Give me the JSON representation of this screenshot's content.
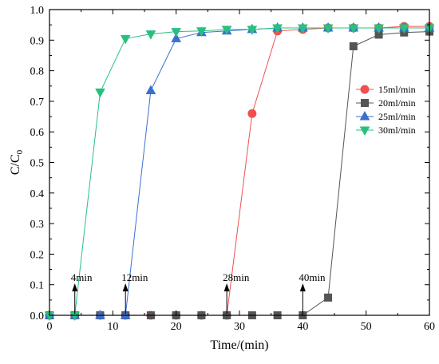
{
  "chart_data": {
    "type": "line",
    "title": "",
    "xlabel": "Time/(min)",
    "ylabel_main": "C/C",
    "ylabel_sub": "0",
    "xlim": [
      0,
      60
    ],
    "ylim": [
      0.0,
      1.0
    ],
    "x_ticks": [
      "0",
      "10",
      "20",
      "30",
      "40",
      "50",
      "60"
    ],
    "y_ticks": [
      "0.0",
      "0.1",
      "0.2",
      "0.3",
      "0.4",
      "0.5",
      "0.6",
      "0.7",
      "0.8",
      "0.9",
      "1.0"
    ],
    "grid": false,
    "legend_position": "right-center",
    "series": [
      {
        "name": "15ml/min",
        "color": "#f05050",
        "marker": "circle",
        "points": [
          [
            0,
            0
          ],
          [
            4,
            0
          ],
          [
            8,
            0
          ],
          [
            12,
            0
          ],
          [
            16,
            0
          ],
          [
            20,
            0
          ],
          [
            24,
            0
          ],
          [
            28,
            0
          ],
          [
            32,
            0.66
          ],
          [
            36,
            0.93
          ],
          [
            40,
            0.935
          ],
          [
            44,
            0.94
          ],
          [
            48,
            0.94
          ],
          [
            52,
            0.94
          ],
          [
            56,
            0.945
          ],
          [
            60,
            0.945
          ]
        ]
      },
      {
        "name": "20ml/min",
        "color": "#555555",
        "marker": "square",
        "points": [
          [
            0,
            0
          ],
          [
            4,
            0
          ],
          [
            8,
            0
          ],
          [
            12,
            0
          ],
          [
            16,
            0
          ],
          [
            20,
            0
          ],
          [
            24,
            0
          ],
          [
            28,
            0
          ],
          [
            32,
            0
          ],
          [
            36,
            0
          ],
          [
            40,
            0
          ],
          [
            44,
            0.058
          ],
          [
            48,
            0.88
          ],
          [
            52,
            0.918
          ],
          [
            56,
            0.925
          ],
          [
            60,
            0.928
          ]
        ]
      },
      {
        "name": "25ml/min",
        "color": "#3a6fd0",
        "marker": "triangle-up",
        "points": [
          [
            0,
            0
          ],
          [
            4,
            0
          ],
          [
            8,
            0
          ],
          [
            12,
            0
          ],
          [
            16,
            0.735
          ],
          [
            20,
            0.905
          ],
          [
            24,
            0.925
          ],
          [
            28,
            0.93
          ],
          [
            32,
            0.935
          ],
          [
            36,
            0.94
          ],
          [
            40,
            0.94
          ],
          [
            44,
            0.94
          ],
          [
            48,
            0.94
          ],
          [
            52,
            0.94
          ],
          [
            56,
            0.94
          ],
          [
            60,
            0.94
          ]
        ]
      },
      {
        "name": "30ml/min",
        "color": "#28c080",
        "marker": "triangle-down",
        "points": [
          [
            0,
            0
          ],
          [
            4,
            0
          ],
          [
            8,
            0.73
          ],
          [
            12,
            0.905
          ],
          [
            16,
            0.92
          ],
          [
            20,
            0.928
          ],
          [
            24,
            0.93
          ],
          [
            28,
            0.935
          ],
          [
            32,
            0.935
          ],
          [
            36,
            0.94
          ],
          [
            40,
            0.94
          ],
          [
            44,
            0.94
          ],
          [
            48,
            0.94
          ],
          [
            52,
            0.94
          ],
          [
            56,
            0.94
          ],
          [
            60,
            0.94
          ]
        ]
      }
    ],
    "annotations": [
      {
        "text": "4min",
        "x": 4
      },
      {
        "text": "12min",
        "x": 12
      },
      {
        "text": "28min",
        "x": 28
      },
      {
        "text": "40min",
        "x": 40
      }
    ]
  }
}
